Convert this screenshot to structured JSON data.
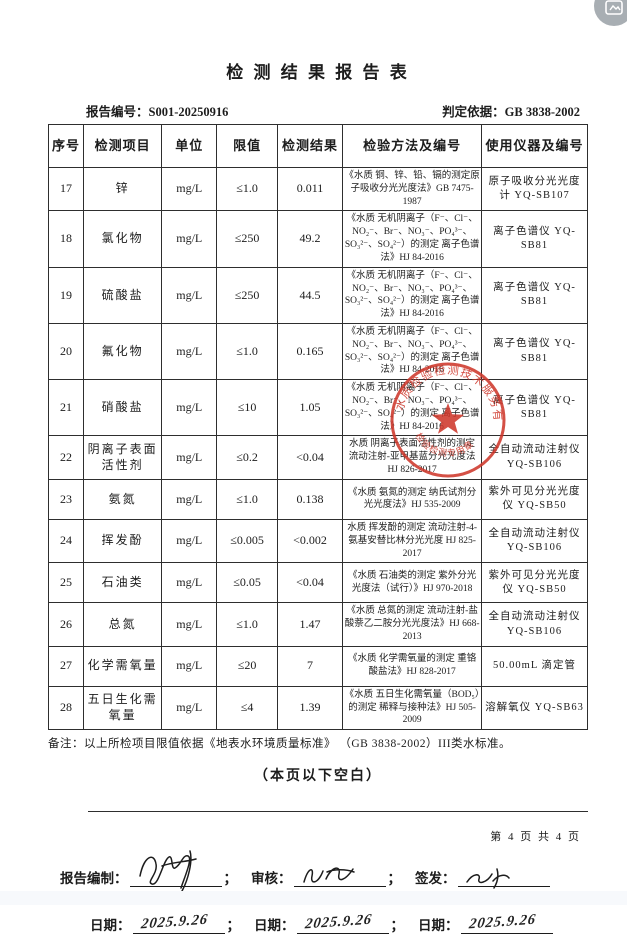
{
  "page": {
    "title": "检 测 结 果 报 告 表",
    "report_no_label": "报告编号：",
    "report_no": "S001-20250916",
    "basis_label": "判定依据：",
    "basis": "GB 3838-2002",
    "note": "备注：以上所检项目限值依据《地表水环境质量标准》 （GB 3838-2002）III类水标准。",
    "blank_notice": "（本页以下空白）",
    "page_footer": "第 4 页 共 4 页"
  },
  "table": {
    "headers": [
      "序号",
      "检测项目",
      "单位",
      "限值",
      "检测结果",
      "检验方法及编号",
      "使用仪器及编号"
    ],
    "rows": [
      {
        "no": "17",
        "item": "锌",
        "unit": "mg/L",
        "limit": "≤1.0",
        "result": "0.011",
        "method": "《水质 铜、锌、铅、镉的测定原子吸收分光光度法》GB 7475-1987",
        "instrument": "原子吸收分光光度计 YQ-SB107"
      },
      {
        "no": "18",
        "item": "氯化物",
        "unit": "mg/L",
        "limit": "≤250",
        "result": "49.2",
        "method": "《水质 无机阴离子（F⁻、Cl⁻、NO₂⁻、Br⁻、NO₃⁻、PO₄³⁻、SO₃²⁻、SO₄²⁻）的测定 离子色谱法》HJ 84-2016",
        "instrument": "离子色谱仪 YQ-SB81"
      },
      {
        "no": "19",
        "item": "硫酸盐",
        "unit": "mg/L",
        "limit": "≤250",
        "result": "44.5",
        "method": "《水质 无机阴离子（F⁻、Cl⁻、NO₂⁻、Br⁻、NO₃⁻、PO₄³⁻、SO₃²⁻、SO₄²⁻）的测定 离子色谱法》HJ 84-2016",
        "instrument": "离子色谱仪 YQ-SB81"
      },
      {
        "no": "20",
        "item": "氟化物",
        "unit": "mg/L",
        "limit": "≤1.0",
        "result": "0.165",
        "method": "《水质 无机阴离子（F⁻、Cl⁻、NO₂⁻、Br⁻、NO₃⁻、PO₄³⁻、SO₃²⁻、SO₄²⁻）的测定 离子色谱法》HJ 84-2016",
        "instrument": "离子色谱仪 YQ-SB81"
      },
      {
        "no": "21",
        "item": "硝酸盐",
        "unit": "mg/L",
        "limit": "≤10",
        "result": "1.05",
        "method": "《水质 无机阴离子（F⁻、Cl⁻、NO₂⁻、Br⁻、NO₃⁻、PO₄³⁻、SO₃²⁻、SO₄²⁻）的测定 离子色谱法》HJ 84-2016",
        "instrument": "离子色谱仪 YQ-SB81"
      },
      {
        "no": "22",
        "item": "阴离子表面活性剂",
        "unit": "mg/L",
        "limit": "≤0.2",
        "result": "<0.04",
        "method": "水质 阴离子表面活性剂的测定 流动注射-亚甲基蓝分光光度法 HJ 826-2017",
        "instrument": "全自动流动注射仪 YQ-SB106"
      },
      {
        "no": "23",
        "item": "氨氮",
        "unit": "mg/L",
        "limit": "≤1.0",
        "result": "0.138",
        "method": "《水质 氨氮的测定 纳氏试剂分光光度法》HJ 535-2009",
        "instrument": "紫外可见分光光度仪 YQ-SB50"
      },
      {
        "no": "24",
        "item": "挥发酚",
        "unit": "mg/L",
        "limit": "≤0.005",
        "result": "<0.002",
        "method": "水质 挥发酚的测定 流动注射-4-氨基安替比林分光光度 HJ 825-2017",
        "instrument": "全自动流动注射仪 YQ-SB106"
      },
      {
        "no": "25",
        "item": "石油类",
        "unit": "mg/L",
        "limit": "≤0.05",
        "result": "<0.04",
        "method": "《水质 石油类的测定 紫外分光光度法（试行）》HJ 970-2018",
        "instrument": "紫外可见分光光度仪 YQ-SB50"
      },
      {
        "no": "26",
        "item": "总氮",
        "unit": "mg/L",
        "limit": "≤1.0",
        "result": "1.47",
        "method": "《水质 总氮的测定 流动注射-盐酸萘乙二胺分光光度法》HJ 668-2013",
        "instrument": "全自动流动注射仪 YQ-SB106"
      },
      {
        "no": "27",
        "item": "化学需氧量",
        "unit": "mg/L",
        "limit": "≤20",
        "result": "7",
        "method": "《水质 化学需氧量的测定 重铬酸盐法》HJ 828-2017",
        "instrument": "50.00mL 滴定管"
      },
      {
        "no": "28",
        "item": "五日生化需氧量",
        "unit": "mg/L",
        "limit": "≤4",
        "result": "1.39",
        "method": "《水质 五日生化需氧量（BOD₅）的测定 稀释与接种法》HJ 505-2009",
        "instrument": "溶解氧仪 YQ-SB63"
      }
    ]
  },
  "stamp": {
    "rim_text": "水质检验检测技术服务有限公司",
    "bottom_text": "检验检测专用章",
    "color": "#cf382c"
  },
  "signatures": {
    "prepared_label": "报告编制：",
    "review_label": "审核：",
    "issue_label": "签发：",
    "date_label": "日期：",
    "separator": "；",
    "prepared_date": "2025.9.26",
    "review_date": "2025.9.26",
    "issue_date": "2025.9.26"
  },
  "fab": {
    "icon": "export-image-icon"
  }
}
